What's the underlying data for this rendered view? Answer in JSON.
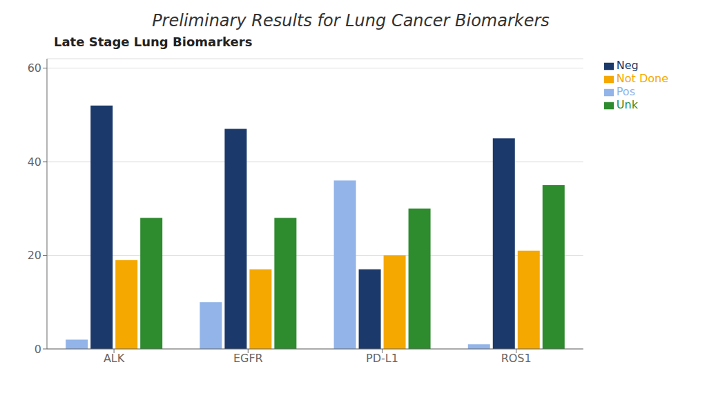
{
  "chart_data": {
    "type": "bar",
    "title": "Preliminary Results for Lung Cancer Biomarkers",
    "subtitle": "Late Stage Lung Biomarkers",
    "categories": [
      "ALK",
      "EGFR",
      "PD-L1",
      "ROS1"
    ],
    "series": [
      {
        "name": "Pos",
        "color": "#92B4E8",
        "values": [
          2,
          10,
          36,
          1
        ]
      },
      {
        "name": "Neg",
        "color": "#1B3A6B",
        "values": [
          52,
          47,
          17,
          45
        ]
      },
      {
        "name": "Not Done",
        "color": "#F5A800",
        "values": [
          19,
          17,
          20,
          21
        ]
      },
      {
        "name": "Unk",
        "color": "#2E8B2E",
        "values": [
          28,
          28,
          30,
          35
        ]
      }
    ],
    "ylim": [
      0,
      62
    ],
    "yticks": [
      0,
      20,
      40,
      60
    ],
    "grid": true,
    "legend": "right"
  }
}
